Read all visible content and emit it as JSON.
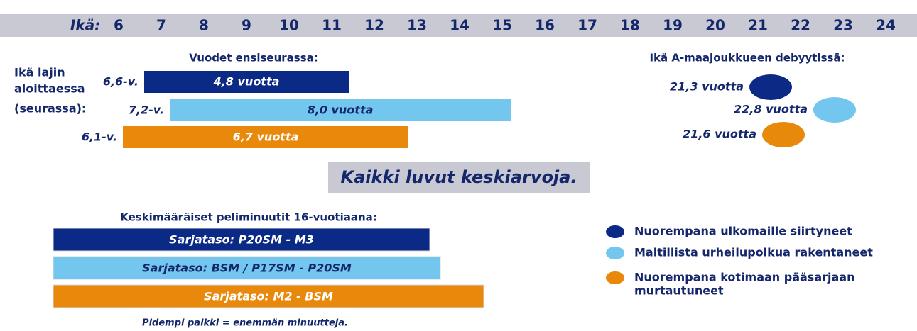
{
  "chart_data": {
    "type": "timeline",
    "age_axis": {
      "label": "Ikä:",
      "ticks": [
        6,
        7,
        8,
        9,
        10,
        11,
        12,
        13,
        14,
        15,
        16,
        17,
        18,
        19,
        20,
        21,
        22,
        23,
        24
      ],
      "xlim": [
        6,
        24
      ]
    },
    "start_title_lines": [
      "Ikä lajin",
      "aloittaessa",
      "(seurassa):"
    ],
    "club_years": {
      "title": "Vuodet ensiseurassa:",
      "bars": [
        {
          "start": 6.6,
          "start_label": "6,6-v.",
          "years": 4.8,
          "years_label": "4,8 vuotta",
          "color": "#0b2a86",
          "text_color": "#ffffff"
        },
        {
          "start": 7.2,
          "start_label": "7,2-v.",
          "years": 8.0,
          "years_label": "8,0 vuotta",
          "color": "#73c7ef",
          "text_color": "#14276b"
        },
        {
          "start": 6.1,
          "start_label": "6,1-v.",
          "years": 6.7,
          "years_label": "6,7 vuotta",
          "color": "#e8890c",
          "text_color": "#ffffff"
        }
      ]
    },
    "debut": {
      "title": "Ikä A-maajoukkueen debyytissä:",
      "points": [
        {
          "age": 21.3,
          "label": "21,3 vuotta",
          "color": "#0b2a86"
        },
        {
          "age": 22.8,
          "label": "22,8 vuotta",
          "color": "#73c7ef"
        },
        {
          "age": 21.6,
          "label": "21,6 vuotta",
          "color": "#e8890c"
        }
      ]
    },
    "note": "Kaikki luvut keskiarvoja.",
    "minutes": {
      "title": "Keskimääräiset peliminuutit 16-vuotiaana:",
      "bars": [
        {
          "label": "Sarjataso: P20SM - M3",
          "color": "#0b2a86",
          "text_color": "#ffffff"
        },
        {
          "label": "Sarjataso: BSM / P17SM - P20SM",
          "color": "#73c7ef",
          "text_color": "#14276b"
        },
        {
          "label": "Sarjataso: M2 - BSM",
          "color": "#e8890c",
          "text_color": "#ffffff"
        }
      ],
      "footnote": "Pidempi palkki = enemmän minuutteja."
    },
    "legend": [
      {
        "lines": [
          "Nuorempana ulkomaille siirtyneet"
        ],
        "color": "#0b2a86"
      },
      {
        "lines": [
          "Maltillista urheilupolkua rakentaneet"
        ],
        "color": "#73c7ef"
      },
      {
        "lines": [
          "Nuorempana kotimaan pääsarjaan",
          "murtautuneet"
        ],
        "color": "#e8890c"
      }
    ]
  }
}
